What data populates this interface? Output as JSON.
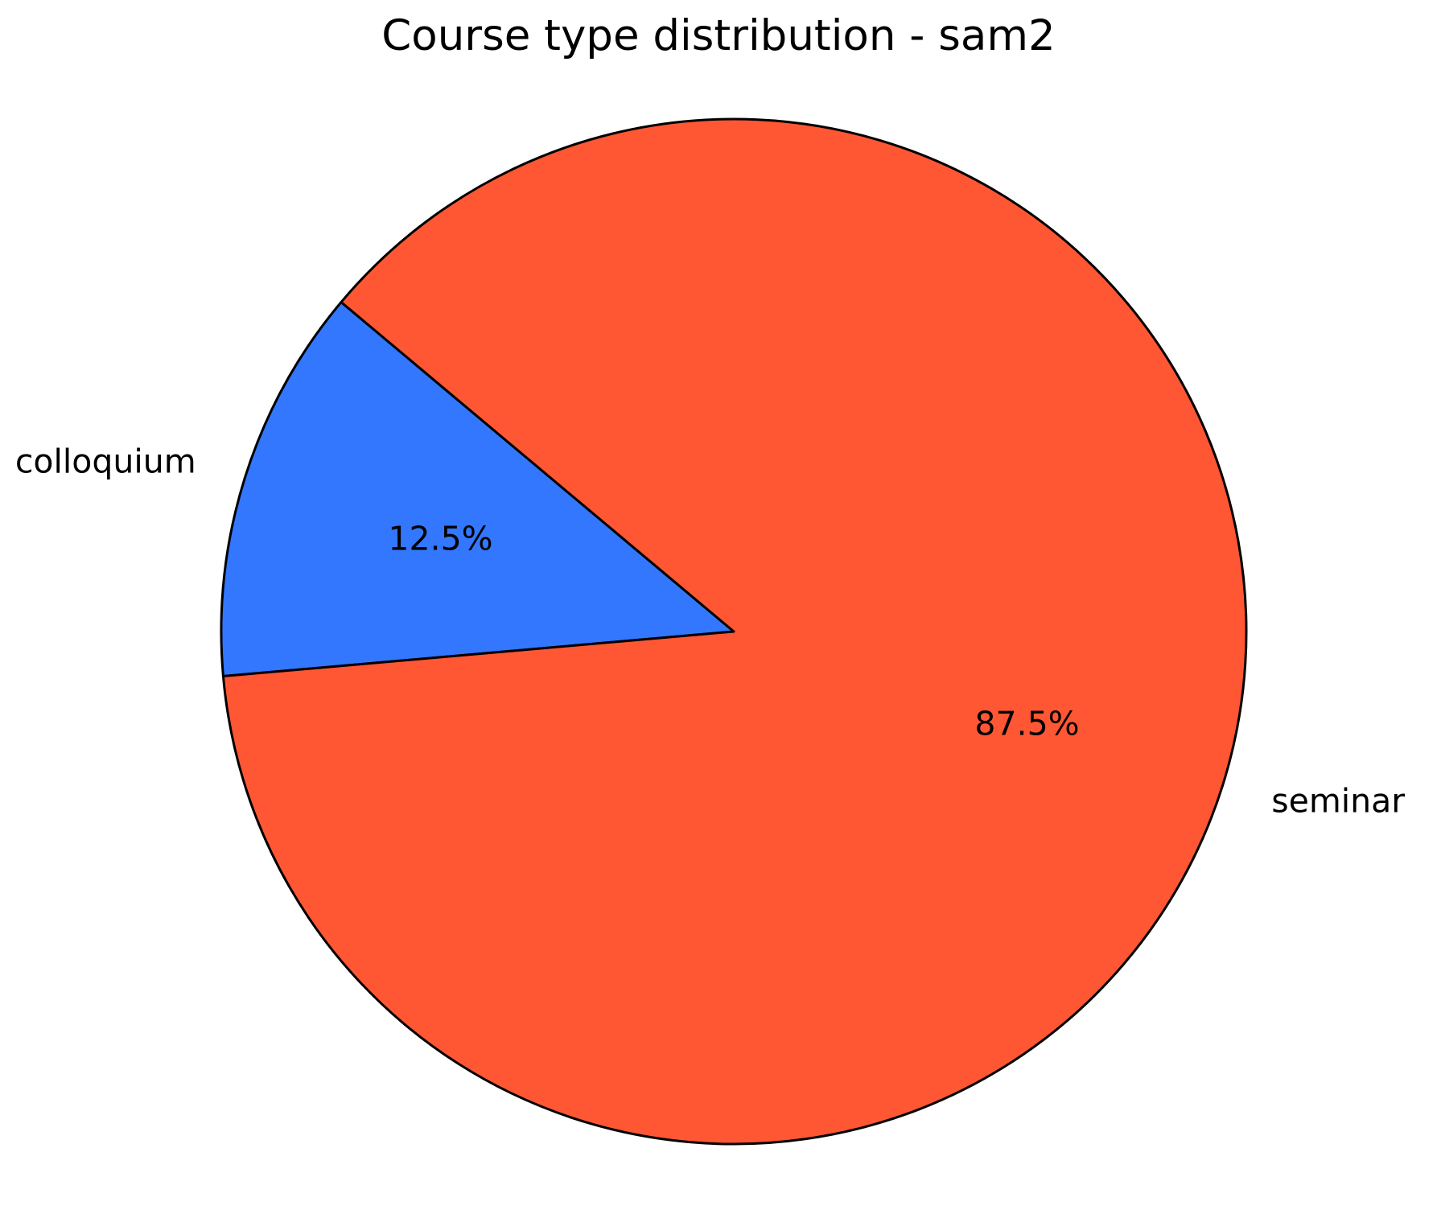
{
  "title": "Course type distribution - sam2",
  "chart_data": {
    "type": "pie",
    "title": "Course type distribution - sam2",
    "slices": [
      {
        "label": "colloquium",
        "value": 12.5,
        "pct_label": "12.5%",
        "color": "#3377FF"
      },
      {
        "label": "seminar",
        "value": 87.5,
        "pct_label": "87.5%",
        "color": "#FF5733"
      }
    ],
    "start_angle": 140,
    "direction": "counterclockwise",
    "edge_color": "#000000",
    "text_color": "#000000",
    "background_color": "#FFFFFF",
    "pct_distance": 0.6,
    "label_distance": 1.1,
    "legend": false
  }
}
